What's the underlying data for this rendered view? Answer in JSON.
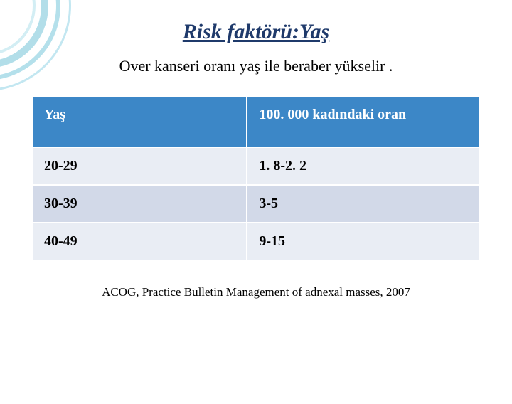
{
  "decoration": {
    "arcs": [
      {
        "size": 240,
        "border": 3,
        "color": "#b9e3ef",
        "opacity": 0.85
      },
      {
        "size": 210,
        "border": 6,
        "color": "#a8dbe8",
        "opacity": 0.85
      },
      {
        "size": 175,
        "border": 10,
        "color": "#9fd6e4",
        "opacity": 0.8
      },
      {
        "size": 140,
        "border": 4,
        "color": "#c9eaf2",
        "opacity": 0.8
      }
    ]
  },
  "title": {
    "text": "Risk faktörü:Yaş",
    "fontsize": 30,
    "color": "#1f3a6b"
  },
  "subtitle": {
    "text": "Over kanseri oranı yaş ile beraber yükselir .",
    "fontsize": 22,
    "color": "#000000"
  },
  "table": {
    "header_bg": "#3c87c7",
    "header_color": "#ffffff",
    "row_bg_odd": "#e9edf4",
    "row_bg_even": "#d2d9e8",
    "cell_fontsize": 20,
    "cell_color": "#000000",
    "col1_width_pct": 48,
    "columns": [
      "Yaş",
      "100. 000 kadındaki oran"
    ],
    "rows": [
      [
        "20-29",
        "1. 8-2. 2"
      ],
      [
        "30-39",
        "3-5"
      ],
      [
        "40-49",
        "9-15"
      ]
    ]
  },
  "footer": {
    "text": "ACOG, Practice Bulletin Management of adnexal masses, 2007",
    "fontsize": 17,
    "color": "#000000"
  }
}
